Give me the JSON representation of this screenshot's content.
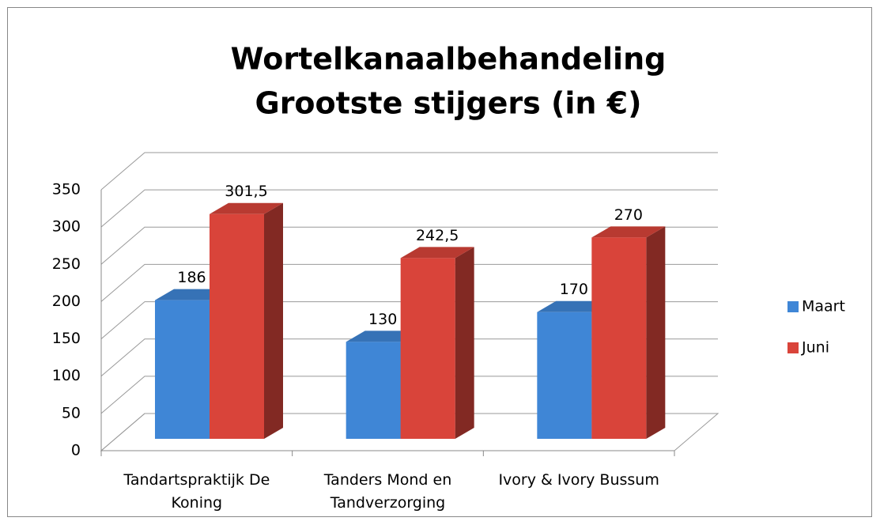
{
  "chart_data": {
    "type": "bar3d",
    "title": [
      "Wortelkanaalbehandeling",
      "Grootste stijgers (in €)"
    ],
    "categories": [
      "Tandartspraktijk De Koning",
      "Tanders Mond en Tandverzorging",
      "Ivory & Ivory Bussum"
    ],
    "series": [
      {
        "name": "Maart",
        "color": "#3f86d6",
        "values": [
          186,
          130,
          170
        ],
        "value_labels": [
          "186",
          "130",
          "170"
        ]
      },
      {
        "name": "Juni",
        "color": "#d9443a",
        "values": [
          301.5,
          242.5,
          270
        ],
        "value_labels": [
          "301,5",
          "242,5",
          "270"
        ]
      }
    ],
    "ylim": [
      0,
      350
    ],
    "yticks": [
      0,
      50,
      100,
      150,
      200,
      250,
      300,
      350
    ],
    "grid": true,
    "legend": "right"
  }
}
